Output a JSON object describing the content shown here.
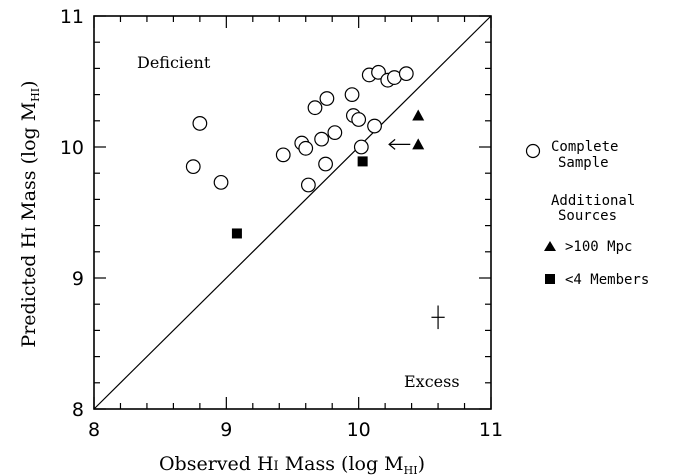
{
  "chart_data": {
    "type": "scatter",
    "xlim": [
      8,
      11
    ],
    "ylim": [
      8,
      11
    ],
    "xticks": [
      "8",
      "9",
      "10",
      "11"
    ],
    "yticks": [
      "8",
      "9",
      "10",
      "11"
    ],
    "xlabel_main": "Observed H",
    "xlabel_ion": "I",
    "xlabel_paren": " Mass (log M",
    "xlabel_sub": "HI",
    "xlabel_close": ")",
    "ylabel_main": "Predicted H",
    "ylabel_ion": "I",
    "ylabel_paren": " Mass (log M",
    "ylabel_sub": "HI",
    "ylabel_close": ")",
    "annotations": {
      "deficient": "Deficient",
      "excess": "Excess"
    },
    "reference_line": {
      "from": [
        8,
        8
      ],
      "to": [
        11,
        11
      ]
    },
    "series": [
      {
        "name": "Complete Sample",
        "marker": "open-circle",
        "points": [
          [
            8.75,
            9.85
          ],
          [
            8.8,
            10.18
          ],
          [
            8.96,
            9.73
          ],
          [
            9.43,
            9.94
          ],
          [
            9.57,
            10.03
          ],
          [
            9.6,
            9.99
          ],
          [
            9.62,
            9.71
          ],
          [
            9.67,
            10.3
          ],
          [
            9.72,
            10.06
          ],
          [
            9.75,
            9.87
          ],
          [
            9.76,
            10.37
          ],
          [
            9.82,
            10.11
          ],
          [
            9.95,
            10.4
          ],
          [
            9.96,
            10.24
          ],
          [
            10.0,
            10.21
          ],
          [
            10.02,
            10.0
          ],
          [
            10.08,
            10.55
          ],
          [
            10.12,
            10.16
          ],
          [
            10.15,
            10.57
          ],
          [
            10.22,
            10.51
          ],
          [
            10.27,
            10.53
          ],
          [
            10.36,
            10.56
          ]
        ]
      },
      {
        "name": ">100 Mpc",
        "marker": "filled-triangle",
        "points": [
          [
            10.45,
            10.24
          ],
          [
            10.45,
            10.02
          ]
        ]
      },
      {
        "name": "<4 Members",
        "marker": "filled-square",
        "points": [
          [
            9.08,
            9.34
          ],
          [
            10.03,
            9.89
          ]
        ]
      }
    ],
    "upper_limit": {
      "from": [
        10.39,
        10.02
      ],
      "to": [
        10.23,
        10.02
      ]
    },
    "error_bar": {
      "x": 10.6,
      "y": 8.7,
      "dx": 0.05,
      "dy": 0.09
    },
    "legend": {
      "placement": "right",
      "complete_line1": "Complete",
      "complete_line2": "Sample",
      "additional_line1": "Additional",
      "additional_line2": "Sources",
      "triangle_label": ">100 Mpc",
      "square_label": "<4 Members"
    }
  }
}
